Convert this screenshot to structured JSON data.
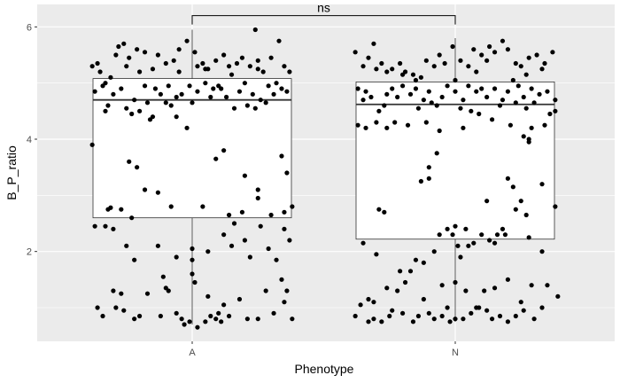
{
  "chart_data": {
    "type": "boxplot-jitter",
    "xlabel": "Phenotype",
    "ylabel": "B_P_ratio",
    "categories": [
      "A",
      "N"
    ],
    "ylim": [
      0.4,
      6.4
    ],
    "yticks": [
      2,
      4,
      6
    ],
    "grid": true,
    "panel_background": "#ebebeb",
    "box_fill": "#ffffff",
    "point_color": "#000000",
    "annotation": {
      "label": "ns",
      "between": [
        "A",
        "N"
      ],
      "y": 6.2
    },
    "boxes": [
      {
        "category": "A",
        "whisker_low": 0.7,
        "q1": 2.6,
        "median": 4.7,
        "q3": 5.08,
        "whisker_high": 5.95
      },
      {
        "category": "N",
        "whisker_low": 0.75,
        "q1": 2.22,
        "median": 4.62,
        "q3": 5.02,
        "whisker_high": 5.8
      }
    ],
    "points": {
      "A": [
        [
          -0.38,
          5.3
        ],
        [
          -0.36,
          5.35
        ],
        [
          -0.33,
          5.0
        ],
        [
          -0.31,
          5.1
        ],
        [
          -0.29,
          5.5
        ],
        [
          -0.26,
          5.7
        ],
        [
          -0.24,
          5.45
        ],
        [
          -0.21,
          5.6
        ],
        [
          -0.18,
          5.55
        ],
        [
          -0.15,
          5.25
        ],
        [
          -0.13,
          5.5
        ],
        [
          -0.1,
          5.35
        ],
        [
          -0.07,
          5.4
        ],
        [
          -0.05,
          5.6
        ],
        [
          -0.02,
          5.75
        ],
        [
          0.01,
          5.55
        ],
        [
          0.04,
          5.35
        ],
        [
          0.06,
          5.25
        ],
        [
          0.09,
          5.4
        ],
        [
          0.12,
          5.5
        ],
        [
          0.14,
          5.3
        ],
        [
          0.17,
          5.35
        ],
        [
          0.19,
          5.45
        ],
        [
          0.22,
          5.3
        ],
        [
          0.25,
          5.4
        ],
        [
          0.27,
          5.2
        ],
        [
          0.3,
          5.45
        ],
        [
          0.33,
          5.75
        ],
        [
          0.35,
          5.3
        ],
        [
          0.37,
          5.2
        ],
        [
          -0.35,
          5.2
        ],
        [
          -0.25,
          5.3
        ],
        [
          -0.05,
          5.2
        ],
        [
          0.05,
          5.25
        ],
        [
          0.15,
          5.15
        ],
        [
          0.25,
          5.25
        ],
        [
          0.24,
          5.95
        ],
        [
          -0.2,
          5.2
        ],
        [
          -0.28,
          5.65
        ],
        [
          0.02,
          5.3
        ],
        [
          -0.37,
          4.85
        ],
        [
          -0.32,
          4.6
        ],
        [
          -0.3,
          4.8
        ],
        [
          -0.27,
          4.9
        ],
        [
          -0.25,
          4.55
        ],
        [
          -0.22,
          4.7
        ],
        [
          -0.2,
          4.5
        ],
        [
          -0.17,
          4.65
        ],
        [
          -0.14,
          4.9
        ],
        [
          -0.12,
          4.8
        ],
        [
          -0.09,
          4.95
        ],
        [
          -0.06,
          4.75
        ],
        [
          -0.04,
          4.8
        ],
        [
          -0.01,
          4.95
        ],
        [
          0.02,
          4.85
        ],
        [
          0.05,
          5.0
        ],
        [
          0.08,
          4.9
        ],
        [
          0.1,
          4.95
        ],
        [
          0.13,
          4.75
        ],
        [
          0.16,
          4.55
        ],
        [
          0.18,
          4.85
        ],
        [
          0.21,
          4.6
        ],
        [
          0.24,
          4.55
        ],
        [
          0.26,
          4.7
        ],
        [
          0.29,
          4.95
        ],
        [
          0.31,
          4.8
        ],
        [
          0.34,
          4.9
        ],
        [
          0.36,
          4.85
        ],
        [
          -0.18,
          4.95
        ],
        [
          -0.08,
          4.6
        ],
        [
          0.0,
          4.65
        ],
        [
          0.07,
          4.75
        ],
        [
          0.2,
          5.0
        ],
        [
          0.28,
          4.65
        ],
        [
          0.32,
          5.0
        ],
        [
          -0.34,
          4.95
        ],
        [
          -0.1,
          4.65
        ],
        [
          0.11,
          4.9
        ],
        [
          0.23,
          4.8
        ],
        [
          -0.15,
          4.4
        ],
        [
          -0.33,
          4.5
        ],
        [
          -0.23,
          4.45
        ],
        [
          -0.16,
          4.35
        ],
        [
          -0.06,
          4.4
        ],
        [
          -0.02,
          4.2
        ],
        [
          0.12,
          3.8
        ],
        [
          0.09,
          3.65
        ],
        [
          0.2,
          3.35
        ],
        [
          0.25,
          3.1
        ],
        [
          0.25,
          2.95
        ],
        [
          0.34,
          3.7
        ],
        [
          0.36,
          3.4
        ],
        [
          0.38,
          2.8
        ],
        [
          0.35,
          2.7
        ],
        [
          -0.38,
          3.9
        ],
        [
          -0.32,
          2.75
        ],
        [
          -0.31,
          2.78
        ],
        [
          -0.21,
          3.5
        ],
        [
          -0.24,
          3.6
        ],
        [
          -0.18,
          3.1
        ],
        [
          -0.13,
          3.05
        ],
        [
          -0.27,
          2.75
        ],
        [
          -0.08,
          2.8
        ],
        [
          0.04,
          2.8
        ],
        [
          0.19,
          2.7
        ],
        [
          -0.23,
          2.6
        ],
        [
          0.14,
          2.65
        ],
        [
          0.3,
          2.65
        ],
        [
          -0.37,
          2.45
        ],
        [
          -0.33,
          2.45
        ],
        [
          -0.3,
          2.4
        ],
        [
          -0.25,
          2.1
        ],
        [
          -0.22,
          1.85
        ],
        [
          -0.13,
          2.1
        ],
        [
          -0.06,
          1.9
        ],
        [
          0.0,
          2.05
        ],
        [
          0.0,
          1.85
        ],
        [
          0.0,
          1.6
        ],
        [
          0.01,
          1.45
        ],
        [
          0.06,
          2.0
        ],
        [
          0.12,
          2.3
        ],
        [
          0.16,
          2.5
        ],
        [
          0.2,
          2.2
        ],
        [
          0.26,
          2.45
        ],
        [
          0.29,
          2.05
        ],
        [
          0.32,
          1.85
        ],
        [
          0.34,
          1.5
        ],
        [
          0.35,
          2.4
        ],
        [
          0.37,
          2.2
        ],
        [
          0.15,
          2.1
        ],
        [
          0.22,
          1.9
        ],
        [
          -0.3,
          1.3
        ],
        [
          -0.27,
          1.25
        ],
        [
          -0.17,
          1.25
        ],
        [
          -0.1,
          1.35
        ],
        [
          -0.09,
          1.3
        ],
        [
          -0.11,
          1.55
        ],
        [
          0.06,
          1.2
        ],
        [
          0.12,
          1.05
        ],
        [
          0.18,
          1.15
        ],
        [
          0.28,
          1.3
        ],
        [
          0.35,
          1.1
        ],
        [
          0.36,
          1.3
        ],
        [
          -0.36,
          1.0
        ],
        [
          -0.34,
          0.85
        ],
        [
          -0.29,
          1.0
        ],
        [
          -0.26,
          0.95
        ],
        [
          -0.22,
          0.8
        ],
        [
          -0.2,
          0.85
        ],
        [
          -0.12,
          0.85
        ],
        [
          -0.06,
          0.9
        ],
        [
          -0.04,
          0.8
        ],
        [
          -0.01,
          0.75
        ],
        [
          0.02,
          0.65
        ],
        [
          0.05,
          0.75
        ],
        [
          0.07,
          0.85
        ],
        [
          0.09,
          0.8
        ],
        [
          0.11,
          0.75
        ],
        [
          0.14,
          0.85
        ],
        [
          0.21,
          0.8
        ],
        [
          0.25,
          0.8
        ],
        [
          0.31,
          0.9
        ],
        [
          0.38,
          0.8
        ],
        [
          -0.03,
          0.7
        ],
        [
          0.1,
          0.9
        ]
      ],
      "N": [
        [
          -0.38,
          5.55
        ],
        [
          -0.35,
          5.3
        ],
        [
          -0.33,
          5.45
        ],
        [
          -0.3,
          5.25
        ],
        [
          -0.28,
          5.35
        ],
        [
          -0.26,
          5.2
        ],
        [
          -0.24,
          5.25
        ],
        [
          -0.21,
          5.35
        ],
        [
          -0.19,
          5.2
        ],
        [
          -0.16,
          5.15
        ],
        [
          -0.13,
          5.1
        ],
        [
          -0.11,
          5.4
        ],
        [
          -0.08,
          5.3
        ],
        [
          -0.06,
          5.5
        ],
        [
          -0.04,
          5.35
        ],
        [
          -0.01,
          5.65
        ],
        [
          0.02,
          5.4
        ],
        [
          0.05,
          5.3
        ],
        [
          0.07,
          5.6
        ],
        [
          0.1,
          5.5
        ],
        [
          0.13,
          5.65
        ],
        [
          0.15,
          5.55
        ],
        [
          0.18,
          5.75
        ],
        [
          0.2,
          5.6
        ],
        [
          0.23,
          5.35
        ],
        [
          0.25,
          5.3
        ],
        [
          0.28,
          5.45
        ],
        [
          0.31,
          5.5
        ],
        [
          0.34,
          5.35
        ],
        [
          0.37,
          5.55
        ],
        [
          -0.31,
          5.7
        ],
        [
          -0.2,
          5.15
        ],
        [
          0.0,
          5.05
        ],
        [
          0.12,
          5.4
        ],
        [
          0.22,
          5.05
        ],
        [
          0.33,
          5.25
        ],
        [
          -0.15,
          5.05
        ],
        [
          0.08,
          5.2
        ],
        [
          0.27,
          5.15
        ],
        [
          -0.37,
          4.9
        ],
        [
          -0.35,
          4.7
        ],
        [
          -0.32,
          4.75
        ],
        [
          -0.29,
          4.5
        ],
        [
          -0.27,
          4.6
        ],
        [
          -0.24,
          4.9
        ],
        [
          -0.22,
          4.75
        ],
        [
          -0.2,
          4.95
        ],
        [
          -0.17,
          4.8
        ],
        [
          -0.15,
          4.9
        ],
        [
          -0.12,
          4.7
        ],
        [
          -0.1,
          4.85
        ],
        [
          -0.07,
          4.6
        ],
        [
          -0.05,
          4.75
        ],
        [
          -0.03,
          4.95
        ],
        [
          0.0,
          4.85
        ],
        [
          0.03,
          4.7
        ],
        [
          0.05,
          4.95
        ],
        [
          0.08,
          4.85
        ],
        [
          0.1,
          4.9
        ],
        [
          0.12,
          4.75
        ],
        [
          0.15,
          4.9
        ],
        [
          0.18,
          4.7
        ],
        [
          0.2,
          4.85
        ],
        [
          0.23,
          4.65
        ],
        [
          0.26,
          4.75
        ],
        [
          0.29,
          4.9
        ],
        [
          0.32,
          4.8
        ],
        [
          0.35,
          4.85
        ],
        [
          0.38,
          4.7
        ],
        [
          -0.34,
          4.85
        ],
        [
          -0.14,
          4.55
        ],
        [
          -0.09,
          4.65
        ],
        [
          0.02,
          4.55
        ],
        [
          0.06,
          4.5
        ],
        [
          0.17,
          4.6
        ],
        [
          0.27,
          4.55
        ],
        [
          0.3,
          4.65
        ],
        [
          -0.26,
          4.8
        ],
        [
          0.24,
          4.95
        ],
        [
          -0.37,
          4.25
        ],
        [
          -0.34,
          4.2
        ],
        [
          -0.3,
          4.3
        ],
        [
          -0.26,
          4.2
        ],
        [
          -0.23,
          4.3
        ],
        [
          -0.18,
          4.25
        ],
        [
          -0.11,
          4.3
        ],
        [
          0.03,
          4.2
        ],
        [
          0.09,
          4.45
        ],
        [
          0.14,
          4.35
        ],
        [
          0.21,
          4.25
        ],
        [
          0.26,
          4.05
        ],
        [
          0.28,
          4.0
        ],
        [
          0.28,
          3.95
        ],
        [
          0.29,
          4.2
        ],
        [
          0.34,
          4.25
        ],
        [
          0.36,
          4.45
        ],
        [
          0.38,
          4.5
        ],
        [
          -0.06,
          4.15
        ],
        [
          -0.07,
          3.75
        ],
        [
          -0.13,
          3.25
        ],
        [
          -0.1,
          3.5
        ],
        [
          0.2,
          3.3
        ],
        [
          0.22,
          3.15
        ],
        [
          0.25,
          2.9
        ],
        [
          0.33,
          3.2
        ],
        [
          0.27,
          2.65
        ],
        [
          -0.29,
          2.75
        ],
        [
          -0.27,
          2.7
        ],
        [
          -0.1,
          3.3
        ],
        [
          0.12,
          2.9
        ],
        [
          0.23,
          2.75
        ],
        [
          -0.35,
          2.15
        ],
        [
          -0.3,
          1.95
        ],
        [
          -0.15,
          1.85
        ],
        [
          -0.12,
          1.8
        ],
        [
          -0.06,
          2.3
        ],
        [
          -0.03,
          2.4
        ],
        [
          -0.01,
          2.3
        ],
        [
          0.01,
          2.1
        ],
        [
          0.02,
          1.9
        ],
        [
          0.05,
          2.1
        ],
        [
          0.07,
          2.15
        ],
        [
          0.1,
          2.3
        ],
        [
          0.13,
          2.2
        ],
        [
          0.16,
          2.3
        ],
        [
          0.18,
          2.4
        ],
        [
          0.19,
          2.3
        ],
        [
          0.28,
          2.25
        ],
        [
          0.33,
          2.0
        ],
        [
          0.38,
          2.8
        ],
        [
          0.0,
          2.45
        ],
        [
          0.04,
          2.4
        ],
        [
          -0.08,
          2.0
        ],
        [
          0.15,
          2.15
        ],
        [
          -0.33,
          1.15
        ],
        [
          -0.26,
          1.35
        ],
        [
          -0.22,
          1.3
        ],
        [
          -0.21,
          1.65
        ],
        [
          -0.17,
          1.65
        ],
        [
          -0.19,
          1.45
        ],
        [
          -0.05,
          1.4
        ],
        [
          0.0,
          1.45
        ],
        [
          0.04,
          1.3
        ],
        [
          0.11,
          1.3
        ],
        [
          0.15,
          1.35
        ],
        [
          0.2,
          1.5
        ],
        [
          0.29,
          1.4
        ],
        [
          0.35,
          1.4
        ],
        [
          0.39,
          1.2
        ],
        [
          -0.31,
          1.1
        ],
        [
          -0.12,
          1.15
        ],
        [
          0.08,
          1.0
        ],
        [
          0.25,
          1.1
        ],
        [
          -0.38,
          0.85
        ],
        [
          -0.36,
          1.05
        ],
        [
          -0.33,
          0.75
        ],
        [
          -0.31,
          0.8
        ],
        [
          -0.28,
          0.75
        ],
        [
          -0.25,
          0.85
        ],
        [
          -0.2,
          0.9
        ],
        [
          -0.16,
          0.75
        ],
        [
          -0.14,
          0.85
        ],
        [
          -0.1,
          0.9
        ],
        [
          -0.08,
          0.8
        ],
        [
          -0.05,
          0.85
        ],
        [
          -0.02,
          0.75
        ],
        [
          0.0,
          0.8
        ],
        [
          0.03,
          0.8
        ],
        [
          0.06,
          0.9
        ],
        [
          0.09,
          1.0
        ],
        [
          0.12,
          0.95
        ],
        [
          0.14,
          0.8
        ],
        [
          0.17,
          0.85
        ],
        [
          0.2,
          0.75
        ],
        [
          0.23,
          0.85
        ],
        [
          0.26,
          0.95
        ],
        [
          0.3,
          0.8
        ],
        [
          0.33,
          1.0
        ],
        [
          -0.24,
          0.95
        ],
        [
          -0.03,
          1.0
        ]
      ]
    }
  }
}
